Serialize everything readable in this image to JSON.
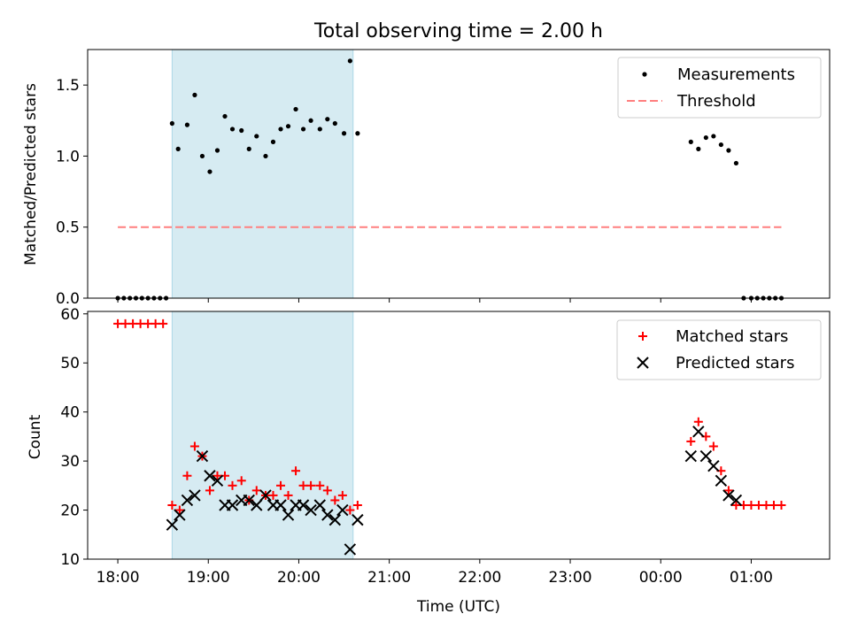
{
  "chart_data": [
    {
      "type": "scatter",
      "title": "Total observing time = 2.00 h",
      "ylabel": "Matched/Predicted stars",
      "xlim": [
        "17:40",
        "01:52"
      ],
      "ylim": [
        0,
        1.75
      ],
      "yticks": [
        0.0,
        0.5,
        1.0,
        1.5
      ],
      "ytick_labels": [
        "0.0",
        "0.5",
        "1.0",
        "1.5"
      ],
      "grid": false,
      "legend": "top-right",
      "shaded_span": {
        "from": "18:36",
        "to": "20:36",
        "color": "#add8e6"
      },
      "series": [
        {
          "name": "Measurements",
          "marker": "dot",
          "color": "#000000",
          "points": [
            [
              "18:00",
              0
            ],
            [
              "18:04",
              0
            ],
            [
              "18:08",
              0
            ],
            [
              "18:12",
              0
            ],
            [
              "18:16",
              0
            ],
            [
              "18:20",
              0
            ],
            [
              "18:24",
              0
            ],
            [
              "18:28",
              0
            ],
            [
              "18:32",
              0
            ],
            [
              "18:36",
              1.23
            ],
            [
              "18:40",
              1.05
            ],
            [
              "18:46",
              1.22
            ],
            [
              "18:51",
              1.43
            ],
            [
              "18:56",
              1.0
            ],
            [
              "19:01",
              0.89
            ],
            [
              "19:06",
              1.04
            ],
            [
              "19:11",
              1.28
            ],
            [
              "19:16",
              1.19
            ],
            [
              "19:22",
              1.18
            ],
            [
              "19:27",
              1.05
            ],
            [
              "19:32",
              1.14
            ],
            [
              "19:38",
              1.0
            ],
            [
              "19:43",
              1.1
            ],
            [
              "19:48",
              1.19
            ],
            [
              "19:53",
              1.21
            ],
            [
              "19:58",
              1.33
            ],
            [
              "20:03",
              1.19
            ],
            [
              "20:08",
              1.25
            ],
            [
              "20:14",
              1.19
            ],
            [
              "20:19",
              1.26
            ],
            [
              "20:24",
              1.23
            ],
            [
              "20:30",
              1.16
            ],
            [
              "20:34",
              1.67
            ],
            [
              "20:39",
              1.16
            ],
            [
              "00:20",
              1.1
            ],
            [
              "00:25",
              1.05
            ],
            [
              "00:30",
              1.13
            ],
            [
              "00:35",
              1.14
            ],
            [
              "00:40",
              1.08
            ],
            [
              "00:45",
              1.04
            ],
            [
              "00:50",
              0.95
            ],
            [
              "00:55",
              0
            ],
            [
              "01:00",
              0
            ],
            [
              "01:04",
              0
            ],
            [
              "01:08",
              0
            ],
            [
              "01:12",
              0
            ],
            [
              "01:16",
              0
            ],
            [
              "01:20",
              0
            ]
          ]
        },
        {
          "name": "Threshold",
          "marker": "dashed-line",
          "color": "#ff7f7f",
          "points": [
            [
              "18:00",
              0.5
            ],
            [
              "01:20",
              0.5
            ]
          ]
        }
      ]
    },
    {
      "type": "scatter",
      "xlabel": "Time (UTC)",
      "ylabel": "Count",
      "xlim": [
        "17:40",
        "01:52"
      ],
      "ylim": [
        10,
        60.5
      ],
      "xticks": [
        "18:00",
        "19:00",
        "20:00",
        "21:00",
        "22:00",
        "23:00",
        "00:00",
        "01:00"
      ],
      "yticks": [
        10,
        20,
        30,
        40,
        50,
        60
      ],
      "grid": false,
      "legend": "top-right",
      "shaded_span": {
        "from": "18:36",
        "to": "20:36",
        "color": "#add8e6"
      },
      "series": [
        {
          "name": "Matched stars",
          "marker": "plus",
          "color": "#ff0000",
          "points": [
            [
              "18:00",
              58
            ],
            [
              "18:05",
              58
            ],
            [
              "18:10",
              58
            ],
            [
              "18:15",
              58
            ],
            [
              "18:20",
              58
            ],
            [
              "18:25",
              58
            ],
            [
              "18:30",
              58
            ],
            [
              "18:36",
              21
            ],
            [
              "18:41",
              20
            ],
            [
              "18:46",
              27
            ],
            [
              "18:51",
              33
            ],
            [
              "18:56",
              31
            ],
            [
              "19:01",
              24
            ],
            [
              "19:06",
              27
            ],
            [
              "19:11",
              27
            ],
            [
              "19:16",
              25
            ],
            [
              "19:22",
              26
            ],
            [
              "19:27",
              22
            ],
            [
              "19:32",
              24
            ],
            [
              "19:38",
              23
            ],
            [
              "19:43",
              23
            ],
            [
              "19:48",
              25
            ],
            [
              "19:53",
              23
            ],
            [
              "19:58",
              28
            ],
            [
              "20:03",
              25
            ],
            [
              "20:08",
              25
            ],
            [
              "20:14",
              25
            ],
            [
              "20:19",
              24
            ],
            [
              "20:24",
              22
            ],
            [
              "20:29",
              23
            ],
            [
              "20:34",
              20
            ],
            [
              "20:39",
              21
            ],
            [
              "00:20",
              34
            ],
            [
              "00:25",
              38
            ],
            [
              "00:30",
              35
            ],
            [
              "00:35",
              33
            ],
            [
              "00:40",
              28
            ],
            [
              "00:45",
              24
            ],
            [
              "00:50",
              21
            ],
            [
              "00:55",
              21
            ],
            [
              "01:00",
              21
            ],
            [
              "01:05",
              21
            ],
            [
              "01:10",
              21
            ],
            [
              "01:15",
              21
            ],
            [
              "01:20",
              21
            ]
          ]
        },
        {
          "name": "Predicted stars",
          "marker": "x",
          "color": "#000000",
          "points": [
            [
              "18:36",
              17
            ],
            [
              "18:41",
              19
            ],
            [
              "18:46",
              22
            ],
            [
              "18:51",
              23
            ],
            [
              "18:56",
              31
            ],
            [
              "19:01",
              27
            ],
            [
              "19:06",
              26
            ],
            [
              "19:11",
              21
            ],
            [
              "19:16",
              21
            ],
            [
              "19:22",
              22
            ],
            [
              "19:27",
              22
            ],
            [
              "19:32",
              21
            ],
            [
              "19:38",
              23
            ],
            [
              "19:43",
              21
            ],
            [
              "19:48",
              21
            ],
            [
              "19:53",
              19
            ],
            [
              "19:58",
              21
            ],
            [
              "20:03",
              21
            ],
            [
              "20:08",
              20
            ],
            [
              "20:14",
              21
            ],
            [
              "20:19",
              19
            ],
            [
              "20:24",
              18
            ],
            [
              "20:29",
              20
            ],
            [
              "20:34",
              12
            ],
            [
              "20:39",
              18
            ],
            [
              "00:20",
              31
            ],
            [
              "00:25",
              36
            ],
            [
              "00:30",
              31
            ],
            [
              "00:35",
              29
            ],
            [
              "00:40",
              26
            ],
            [
              "00:45",
              23
            ],
            [
              "00:50",
              22
            ]
          ]
        }
      ]
    }
  ]
}
